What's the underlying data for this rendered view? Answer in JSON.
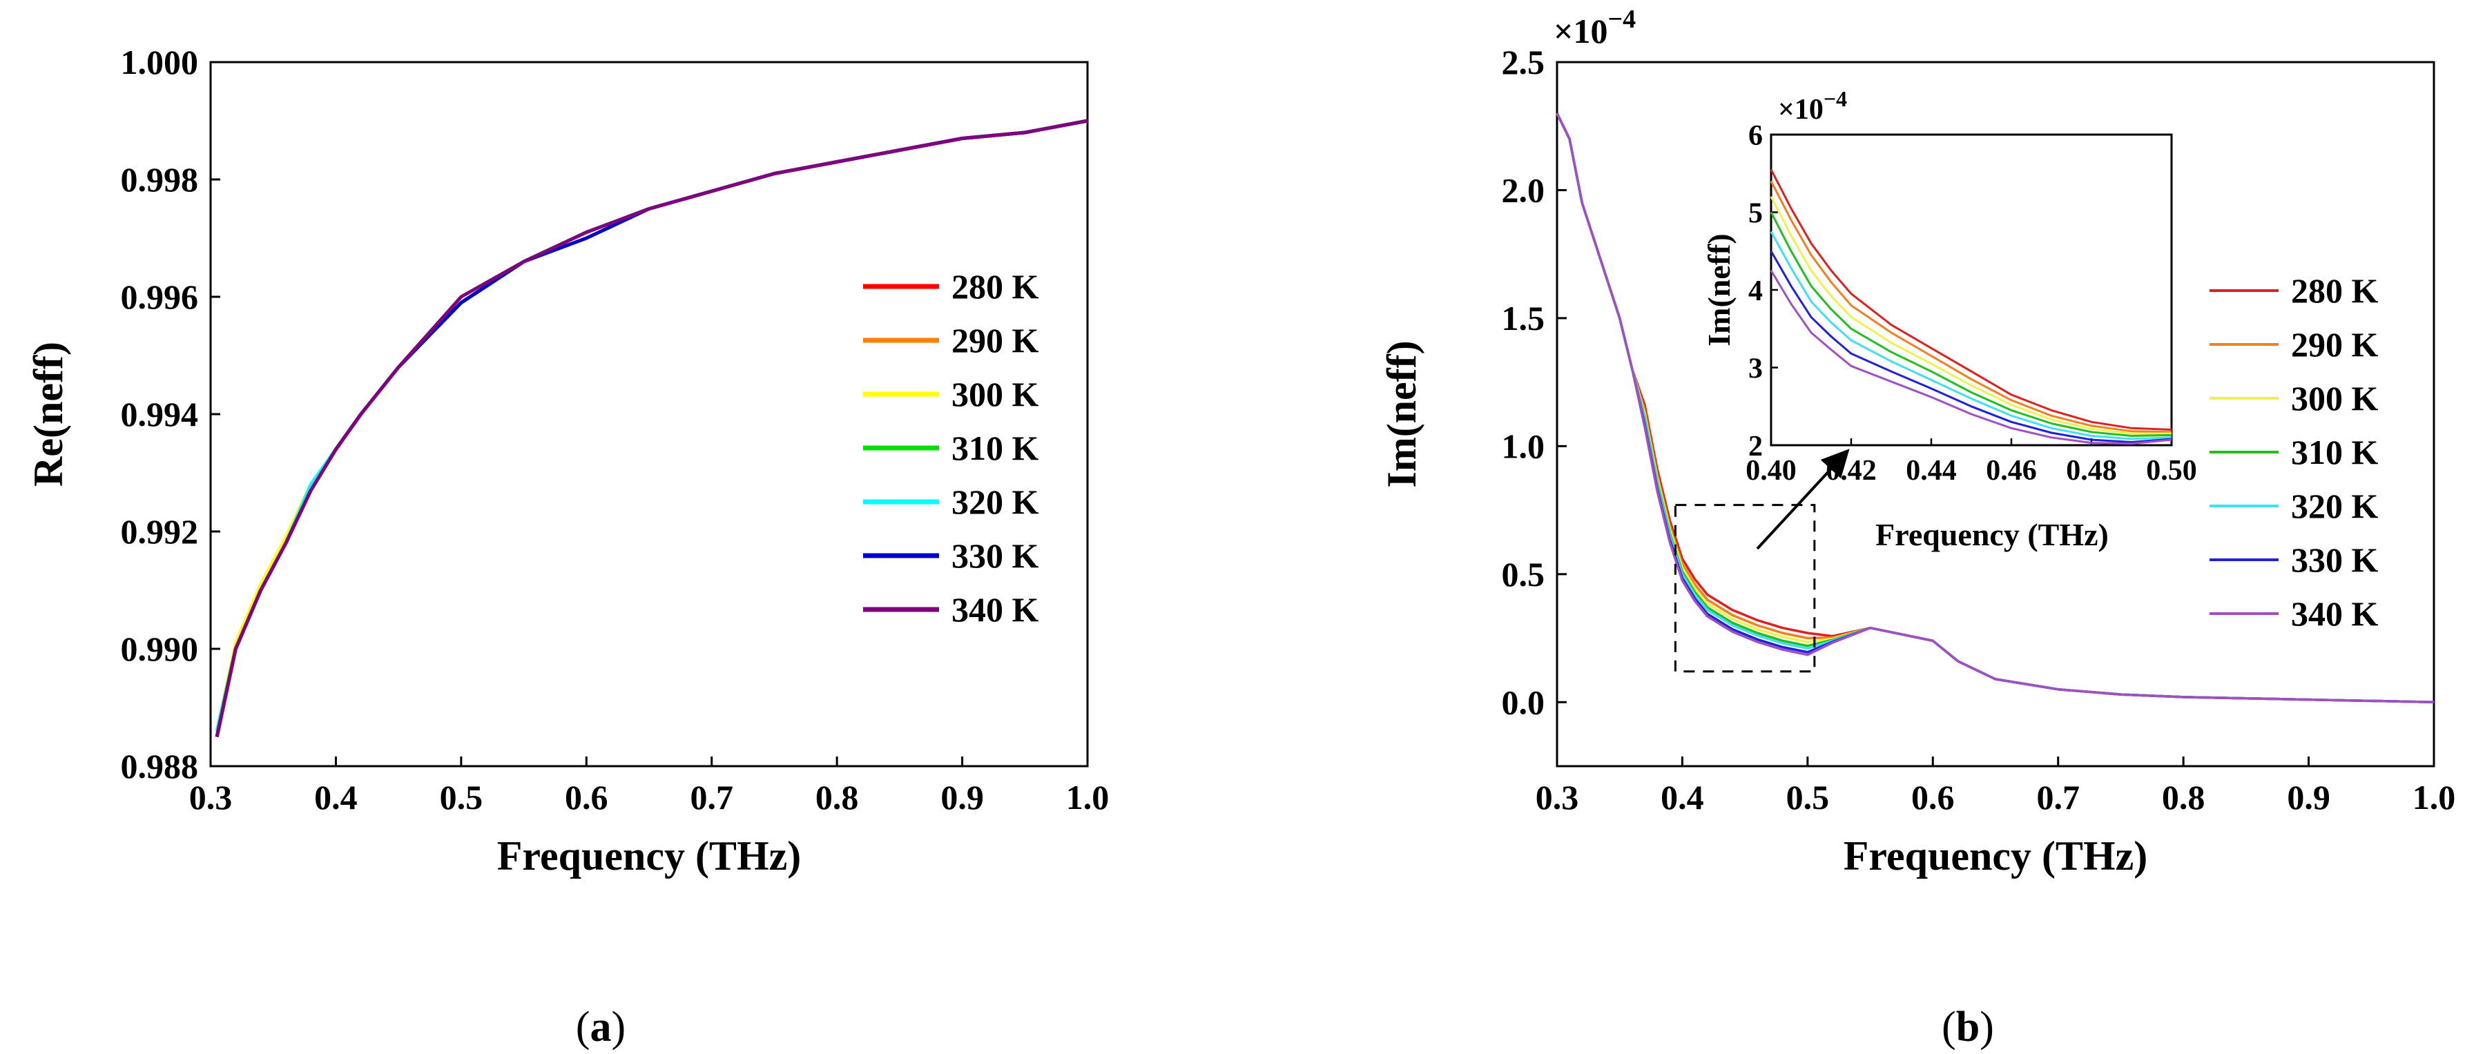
{
  "figure_caption": {
    "a": {
      "open": "(",
      "letter": "a",
      "close": ")"
    },
    "b": {
      "open": "(",
      "letter": "b",
      "close": ")"
    }
  },
  "chart_data": [
    {
      "id": "a",
      "type": "line",
      "title": "",
      "xlabel": "Frequency (THz)",
      "ylabel": "Re(neff)",
      "xlim": [
        0.3,
        1.0
      ],
      "ylim": [
        0.988,
        1.0
      ],
      "xticks": [
        "0.3",
        "0.4",
        "0.5",
        "0.6",
        "0.7",
        "0.8",
        "0.9",
        "1.0"
      ],
      "yticks": [
        "0.988",
        "0.990",
        "0.992",
        "0.994",
        "0.996",
        "0.998",
        "1.000"
      ],
      "legend_position": "right-middle",
      "x": [
        0.305,
        0.32,
        0.34,
        0.36,
        0.38,
        0.4,
        0.42,
        0.45,
        0.5,
        0.55,
        0.6,
        0.65,
        0.7,
        0.75,
        0.8,
        0.85,
        0.9,
        0.95,
        1.0
      ],
      "series": [
        {
          "name": "280 K",
          "color": "#ff0000",
          "values": [
            0.9885,
            0.99,
            0.991,
            0.9918,
            0.9927,
            0.9934,
            0.994,
            0.9948,
            0.9959,
            0.9966,
            0.9971,
            0.9975,
            0.9978,
            0.9981,
            0.9983,
            0.9985,
            0.9987,
            0.9988,
            0.999
          ]
        },
        {
          "name": "290 K",
          "color": "#ff8000",
          "values": [
            0.9885,
            0.99,
            0.991,
            0.9918,
            0.9927,
            0.9934,
            0.994,
            0.9948,
            0.9959,
            0.9966,
            0.9971,
            0.9975,
            0.9978,
            0.9981,
            0.9983,
            0.9985,
            0.9987,
            0.9988,
            0.999
          ]
        },
        {
          "name": "300 K",
          "color": "#ffff00",
          "values": [
            0.9886,
            0.9901,
            0.9911,
            0.9919,
            0.9928,
            0.9934,
            0.994,
            0.9948,
            0.996,
            0.9966,
            0.9971,
            0.9975,
            0.9978,
            0.9981,
            0.9983,
            0.9985,
            0.9987,
            0.9988,
            0.999
          ]
        },
        {
          "name": "310 K",
          "color": "#00e000",
          "values": [
            0.9885,
            0.99,
            0.991,
            0.9918,
            0.9927,
            0.9934,
            0.994,
            0.9948,
            0.9959,
            0.9966,
            0.9971,
            0.9975,
            0.9978,
            0.9981,
            0.9983,
            0.9985,
            0.9987,
            0.9988,
            0.999
          ]
        },
        {
          "name": "320 K",
          "color": "#00ffff",
          "values": [
            0.9886,
            0.99,
            0.991,
            0.9918,
            0.9928,
            0.9934,
            0.994,
            0.9948,
            0.9959,
            0.9966,
            0.9971,
            0.9975,
            0.9978,
            0.9981,
            0.9983,
            0.9985,
            0.9987,
            0.9988,
            0.999
          ]
        },
        {
          "name": "330 K",
          "color": "#0000cc",
          "values": [
            0.9885,
            0.99,
            0.991,
            0.9918,
            0.9927,
            0.9934,
            0.994,
            0.9948,
            0.9959,
            0.9966,
            0.997,
            0.9975,
            0.9978,
            0.9981,
            0.9983,
            0.9985,
            0.9987,
            0.9988,
            0.999
          ]
        },
        {
          "name": "340 K",
          "color": "#800080",
          "values": [
            0.9885,
            0.99,
            0.991,
            0.9918,
            0.9927,
            0.9934,
            0.994,
            0.9948,
            0.996,
            0.9966,
            0.9971,
            0.9975,
            0.9978,
            0.9981,
            0.9983,
            0.9985,
            0.9987,
            0.9988,
            0.999
          ]
        }
      ]
    },
    {
      "id": "b",
      "type": "line",
      "title": "",
      "xlabel": "Frequency (THz)",
      "ylabel": "Im(neff)",
      "scale_label": {
        "base": "×10",
        "exp": "−4"
      },
      "xlim": [
        0.3,
        1.0
      ],
      "ylim": [
        -0.25,
        2.5
      ],
      "xticks": [
        "0.3",
        "0.4",
        "0.5",
        "0.6",
        "0.7",
        "0.8",
        "0.9",
        "1.0"
      ],
      "yticks": [
        "0.0",
        "0.5",
        "1.0",
        "1.5",
        "2.0",
        "2.5"
      ],
      "ytick_values": [
        0.0,
        0.5,
        1.0,
        1.5,
        2.0,
        2.5
      ],
      "legend_position": "right-middle",
      "annotation": "dashed box around 0.40–0.50 THz with arrow to inset",
      "x": [
        0.3,
        0.31,
        0.32,
        0.33,
        0.34,
        0.35,
        0.36,
        0.37,
        0.38,
        0.39,
        0.4,
        0.41,
        0.42,
        0.44,
        0.46,
        0.48,
        0.5,
        0.52,
        0.55,
        0.58,
        0.6,
        0.62,
        0.65,
        0.7,
        0.75,
        0.8,
        0.85,
        0.9,
        0.95,
        1.0
      ],
      "base_values": [
        2.3,
        2.2,
        1.95,
        1.8,
        1.65,
        1.5,
        1.3,
        1.1,
        0.85,
        0.65,
        0.5,
        0.42,
        0.36,
        0.3,
        0.26,
        0.23,
        0.21,
        0.24,
        0.29,
        0.26,
        0.24,
        0.16,
        0.09,
        0.05,
        0.03,
        0.02,
        0.015,
        0.01,
        0.005,
        0.0
      ],
      "series": [
        {
          "name": "280 K",
          "color": "#e02020",
          "offset": 0.06
        },
        {
          "name": "290 K",
          "color": "#f08020",
          "offset": 0.04
        },
        {
          "name": "300 K",
          "color": "#f0f050",
          "offset": 0.025
        },
        {
          "name": "310 K",
          "color": "#20c020",
          "offset": 0.01
        },
        {
          "name": "320 K",
          "color": "#40e0f0",
          "offset": 0.0
        },
        {
          "name": "330 K",
          "color": "#2020e0",
          "offset": -0.015
        },
        {
          "name": "340 K",
          "color": "#a050c0",
          "offset": -0.025
        }
      ],
      "inset": {
        "type": "line",
        "xlabel": "Frequency (THz)",
        "ylabel": "Im(neff)",
        "scale_label": {
          "base": "×10",
          "exp": "−4"
        },
        "xlim": [
          0.4,
          0.5
        ],
        "ylim": [
          2,
          6
        ],
        "xticks": [
          "0.40",
          "0.42",
          "0.44",
          "0.46",
          "0.48",
          "0.50"
        ],
        "yticks": [
          "2",
          "3",
          "4",
          "5",
          "6"
        ],
        "x": [
          0.4,
          0.405,
          0.41,
          0.415,
          0.42,
          0.43,
          0.44,
          0.45,
          0.46,
          0.47,
          0.48,
          0.49,
          0.5
        ],
        "series": [
          {
            "name": "280 K",
            "color": "#e02020",
            "values": [
              5.55,
              5.05,
              4.6,
              4.25,
              3.95,
              3.55,
              3.25,
              2.95,
              2.65,
              2.45,
              2.3,
              2.22,
              2.2
            ]
          },
          {
            "name": "290 K",
            "color": "#f08020",
            "values": [
              5.4,
              4.9,
              4.45,
              4.1,
              3.8,
              3.45,
              3.15,
              2.85,
              2.58,
              2.38,
              2.25,
              2.18,
              2.17
            ]
          },
          {
            "name": "300 K",
            "color": "#f0f050",
            "values": [
              5.2,
              4.7,
              4.25,
              3.92,
              3.65,
              3.32,
              3.05,
              2.77,
              2.52,
              2.33,
              2.21,
              2.15,
              2.15
            ]
          },
          {
            "name": "310 K",
            "color": "#20c020",
            "values": [
              5.0,
              4.5,
              4.05,
              3.75,
              3.5,
              3.2,
              2.95,
              2.68,
              2.45,
              2.28,
              2.17,
              2.12,
              2.13
            ]
          },
          {
            "name": "320 K",
            "color": "#40e0f0",
            "values": [
              4.75,
              4.28,
              3.85,
              3.58,
              3.35,
              3.08,
              2.84,
              2.6,
              2.38,
              2.22,
              2.12,
              2.08,
              2.1
            ]
          },
          {
            "name": "330 K",
            "color": "#2020e0",
            "values": [
              4.5,
              4.05,
              3.65,
              3.4,
              3.18,
              2.95,
              2.73,
              2.5,
              2.3,
              2.16,
              2.07,
              2.04,
              2.08
            ]
          },
          {
            "name": "340 K",
            "color": "#a050c0",
            "values": [
              4.25,
              3.82,
              3.45,
              3.23,
              3.02,
              2.82,
              2.62,
              2.4,
              2.22,
              2.1,
              2.03,
              2.02,
              2.07
            ]
          }
        ]
      }
    }
  ]
}
